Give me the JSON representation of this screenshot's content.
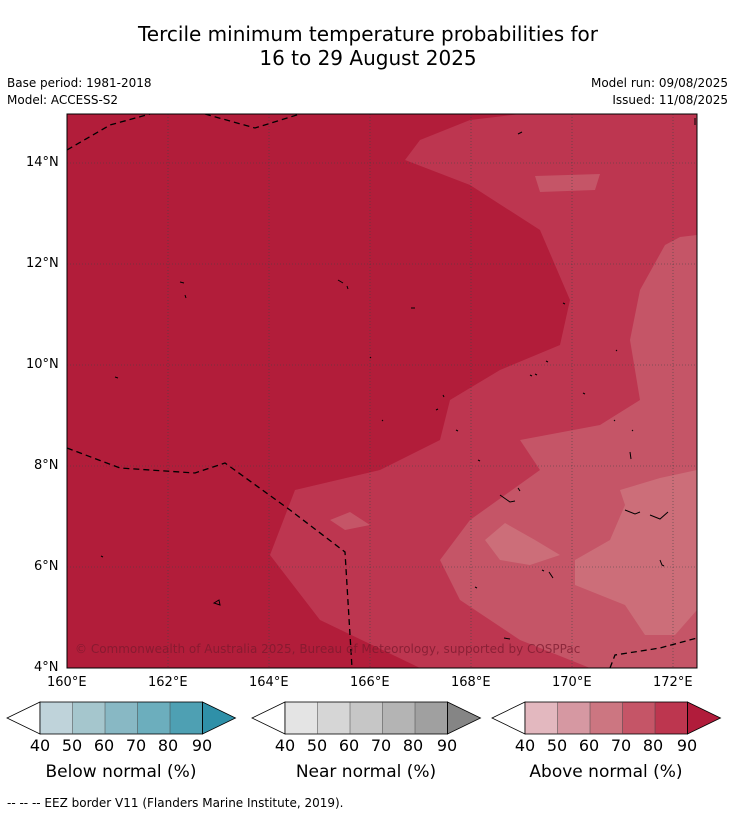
{
  "title_line1": "Tercile minimum temperature probabilities for",
  "title_line2": "16 to 29 August 2025",
  "meta_left": [
    "Base period: 1981-2018",
    "Model: ACCESS-S2"
  ],
  "meta_right": [
    "Model run: 09/08/2025",
    "Issued: 11/08/2025"
  ],
  "copyright": "© Commonwealth of Australia 2025, Bureau of Meteorology, supported by COSPPac",
  "x_ticks": [
    "160°E",
    "162°E",
    "164°E",
    "166°E",
    "168°E",
    "170°E",
    "172°E"
  ],
  "y_ticks": [
    "14°N",
    "12°N",
    "10°N",
    "8°N",
    "6°N",
    "4°N"
  ],
  "colorbars": [
    {
      "label": "Below normal (%)",
      "colors": [
        "#bfd3da",
        "#a5c6cd",
        "#88b8c4",
        "#6caebd",
        "#4ea0b3",
        "#2f90a8"
      ]
    },
    {
      "label": "Near normal (%)",
      "colors": [
        "#e4e4e4",
        "#d6d6d6",
        "#c6c6c6",
        "#b4b4b4",
        "#a0a0a0",
        "#858585"
      ]
    },
    {
      "label": "Above normal (%)",
      "colors": [
        "#e3b8bf",
        "#d698a2",
        "#cc7681",
        "#c55567",
        "#bd364f",
        "#b11c3b"
      ]
    }
  ],
  "colorbar_ticks": [
    "40",
    "50",
    "60",
    "70",
    "80",
    "90"
  ],
  "footer": "-- -- -- EEZ border V11 (Flanders Marine Institute, 2019).",
  "map_colors": {
    "c90": "#b21d3a",
    "c80": "#bd3650",
    "c70": "#c55567",
    "c60": "#cc6e79"
  }
}
